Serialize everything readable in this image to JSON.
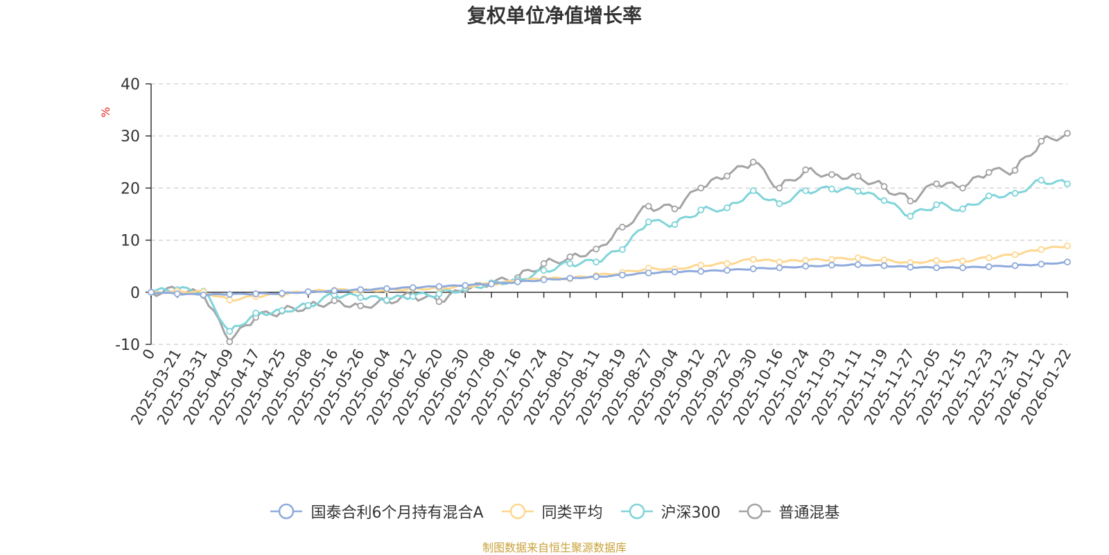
{
  "title": "复权单位净值增长率",
  "source_note": "制图数据来自恒生聚源数据库",
  "chart_data": {
    "type": "line",
    "title": "复权单位净值增长率",
    "ylabel": "%",
    "ylim": [
      -10,
      40
    ],
    "yticks": [
      -10,
      0,
      10,
      20,
      30,
      40
    ],
    "grid": true,
    "legend_position": "bottom",
    "categories": [
      "0",
      "2025-03-21",
      "2025-03-31",
      "2025-04-09",
      "2025-04-17",
      "2025-04-25",
      "2025-05-08",
      "2025-05-16",
      "2025-05-26",
      "2025-06-04",
      "2025-06-12",
      "2025-06-20",
      "2025-06-30",
      "2025-07-08",
      "2025-07-16",
      "2025-07-24",
      "2025-08-01",
      "2025-08-11",
      "2025-08-19",
      "2025-08-27",
      "2025-09-04",
      "2025-09-12",
      "2025-09-22",
      "2025-09-30",
      "2025-10-16",
      "2025-10-24",
      "2025-11-03",
      "2025-11-11",
      "2025-11-19",
      "2025-11-27",
      "2025-12-05",
      "2025-12-15",
      "2025-12-23",
      "2025-12-31",
      "2026-01-12",
      "2026-01-22"
    ],
    "series": [
      {
        "name": "国泰合利6个月持有混合A",
        "color": "#8eaadc",
        "values": [
          0,
          -0.3,
          -0.5,
          -0.4,
          -0.3,
          -0.2,
          0.1,
          0.3,
          0.5,
          0.7,
          0.9,
          1.1,
          1.3,
          1.6,
          2.0,
          2.4,
          2.7,
          3.0,
          3.3,
          3.7,
          3.9,
          4.0,
          4.2,
          4.5,
          4.7,
          5.0,
          5.2,
          5.3,
          5.1,
          4.8,
          4.7,
          4.7,
          4.9,
          5.1,
          5.4,
          5.8
        ]
      },
      {
        "name": "同类平均",
        "color": "#fed78f",
        "values": [
          0,
          0.2,
          0.1,
          -1.5,
          -0.8,
          -0.4,
          0.1,
          0.4,
          0.3,
          0.5,
          0.7,
          0.8,
          1.2,
          1.6,
          2.1,
          2.6,
          2.6,
          3.2,
          3.8,
          4.6,
          4.5,
          5.2,
          5.5,
          6.3,
          5.8,
          6.1,
          6.3,
          6.6,
          6.2,
          5.7,
          6.1,
          6.0,
          6.6,
          7.2,
          8.2,
          8.9
        ]
      },
      {
        "name": "沪深300",
        "color": "#7fd4d9",
        "values": [
          0,
          0.5,
          0.2,
          -7.5,
          -4.0,
          -3.5,
          -2.5,
          -0.5,
          -1.0,
          -1.5,
          -0.8,
          -0.3,
          0.8,
          1.8,
          2.4,
          4.2,
          5.5,
          5.8,
          8.2,
          13.5,
          13.0,
          15.8,
          16.2,
          19.5,
          17.0,
          19.5,
          19.8,
          19.4,
          17.6,
          14.6,
          16.8,
          16.0,
          18.5,
          19.0,
          21.5,
          20.8
        ]
      },
      {
        "name": "普通混基",
        "color": "#a3a3a3",
        "values": [
          0,
          0.4,
          -0.6,
          -9.5,
          -4.8,
          -3.6,
          -2.6,
          -1.6,
          -2.6,
          -1.6,
          -0.6,
          -1.8,
          0.5,
          1.6,
          2.8,
          5.5,
          6.8,
          8.3,
          12.5,
          16.5,
          16.0,
          20.0,
          22.3,
          25.0,
          20.0,
          23.5,
          22.6,
          22.3,
          20.3,
          17.5,
          20.8,
          20.0,
          23.0,
          23.4,
          29.0,
          30.5
        ]
      }
    ]
  }
}
